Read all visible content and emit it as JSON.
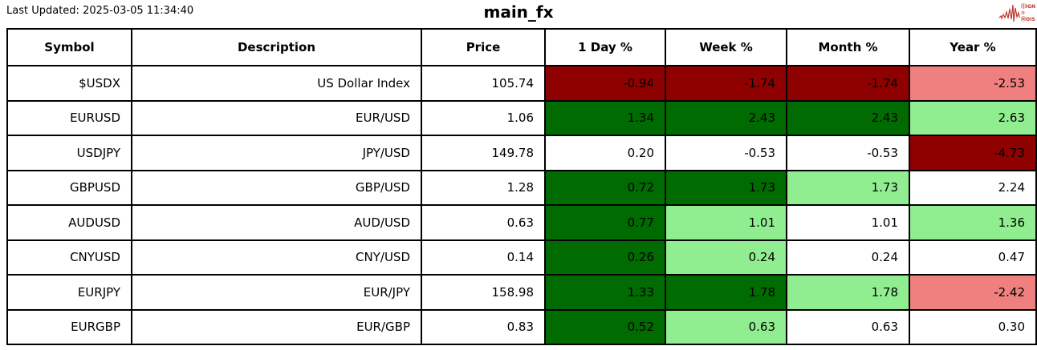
{
  "page": {
    "last_updated_label": "Last Updated:",
    "last_updated_value": "2025-03-05 11:34:40",
    "title": "main_fx"
  },
  "logo": {
    "color": "#c0392b",
    "lines": [
      "ⓈIGNAL",
      "②",
      "ⓃOISE"
    ]
  },
  "colors": {
    "strong_negative": "#8F0000",
    "mild_negative": "#F08080",
    "strong_positive": "#006B00",
    "mild_positive": "#90EE90",
    "neutral": "#FFFFFF",
    "text": "#000000",
    "border": "#000000"
  },
  "chart_data": {
    "type": "table",
    "title": "main_fx",
    "columns": [
      "Symbol",
      "Description",
      "Price",
      "1 Day %",
      "Week %",
      "Month %",
      "Year %"
    ],
    "rows": [
      {
        "symbol": "$USDX",
        "description": "US Dollar Index",
        "price": "105.74",
        "changes": [
          {
            "value": "-0.94",
            "tone": "strong_negative"
          },
          {
            "value": "-1.74",
            "tone": "strong_negative"
          },
          {
            "value": "-1.74",
            "tone": "strong_negative"
          },
          {
            "value": "-2.53",
            "tone": "mild_negative"
          }
        ]
      },
      {
        "symbol": "EURUSD",
        "description": "EUR/USD",
        "price": "1.06",
        "changes": [
          {
            "value": "1.34",
            "tone": "strong_positive"
          },
          {
            "value": "2.43",
            "tone": "strong_positive"
          },
          {
            "value": "2.43",
            "tone": "strong_positive"
          },
          {
            "value": "2.63",
            "tone": "mild_positive"
          }
        ]
      },
      {
        "symbol": "USDJPY",
        "description": "JPY/USD",
        "price": "149.78",
        "changes": [
          {
            "value": "0.20",
            "tone": "neutral"
          },
          {
            "value": "-0.53",
            "tone": "neutral"
          },
          {
            "value": "-0.53",
            "tone": "neutral"
          },
          {
            "value": "-4.73",
            "tone": "strong_negative"
          }
        ]
      },
      {
        "symbol": "GBPUSD",
        "description": "GBP/USD",
        "price": "1.28",
        "changes": [
          {
            "value": "0.72",
            "tone": "strong_positive"
          },
          {
            "value": "1.73",
            "tone": "strong_positive"
          },
          {
            "value": "1.73",
            "tone": "mild_positive"
          },
          {
            "value": "2.24",
            "tone": "neutral"
          }
        ]
      },
      {
        "symbol": "AUDUSD",
        "description": "AUD/USD",
        "price": "0.63",
        "changes": [
          {
            "value": "0.77",
            "tone": "strong_positive"
          },
          {
            "value": "1.01",
            "tone": "mild_positive"
          },
          {
            "value": "1.01",
            "tone": "neutral"
          },
          {
            "value": "1.36",
            "tone": "mild_positive"
          }
        ]
      },
      {
        "symbol": "CNYUSD",
        "description": "CNY/USD",
        "price": "0.14",
        "changes": [
          {
            "value": "0.26",
            "tone": "strong_positive"
          },
          {
            "value": "0.24",
            "tone": "mild_positive"
          },
          {
            "value": "0.24",
            "tone": "neutral"
          },
          {
            "value": "0.47",
            "tone": "neutral"
          }
        ]
      },
      {
        "symbol": "EURJPY",
        "description": "EUR/JPY",
        "price": "158.98",
        "changes": [
          {
            "value": "1.33",
            "tone": "strong_positive"
          },
          {
            "value": "1.78",
            "tone": "strong_positive"
          },
          {
            "value": "1.78",
            "tone": "mild_positive"
          },
          {
            "value": "-2.42",
            "tone": "mild_negative"
          }
        ]
      },
      {
        "symbol": "EURGBP",
        "description": "EUR/GBP",
        "price": "0.83",
        "changes": [
          {
            "value": "0.52",
            "tone": "strong_positive"
          },
          {
            "value": "0.63",
            "tone": "mild_positive"
          },
          {
            "value": "0.63",
            "tone": "neutral"
          },
          {
            "value": "0.30",
            "tone": "neutral"
          }
        ]
      }
    ]
  }
}
